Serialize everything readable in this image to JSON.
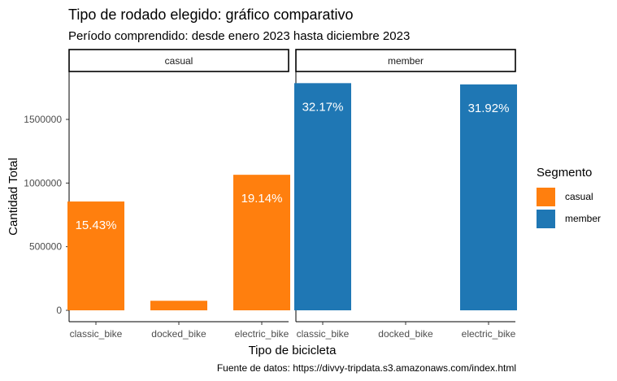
{
  "title": "Tipo de rodado elegido: gráfico comparativo",
  "subtitle": "Período comprendido: desde enero 2023 hasta diciembre 2023",
  "caption": "Fuente de datos: https://divvy-tripdata.s3.amazonaws.com/index.html",
  "colors": {
    "casual": "#FF7F0E",
    "member": "#1F77B4"
  },
  "chart_data": {
    "type": "bar",
    "facets": [
      "casual",
      "member"
    ],
    "categories": [
      "classic_bike",
      "docked_bike",
      "electric_bike"
    ],
    "series": [
      {
        "name": "casual",
        "values": [
          855000,
          75000,
          1065000
        ],
        "labels": [
          "15.43%",
          "",
          "19.14%"
        ]
      },
      {
        "name": "member",
        "values": [
          1785000,
          0,
          1775000
        ],
        "labels": [
          "32.17%",
          "",
          "31.92%"
        ]
      }
    ],
    "xlabel": "Tipo de bicicleta",
    "ylabel": "Cantidad Total",
    "ylim": [
      0,
      1800000
    ],
    "yticks": [
      0,
      500000,
      1000000,
      1500000
    ],
    "ytick_labels": [
      "0",
      "500000",
      "1000000",
      "1500000"
    ],
    "legend": {
      "title": "Segmento",
      "position": "right"
    },
    "grid": false
  }
}
